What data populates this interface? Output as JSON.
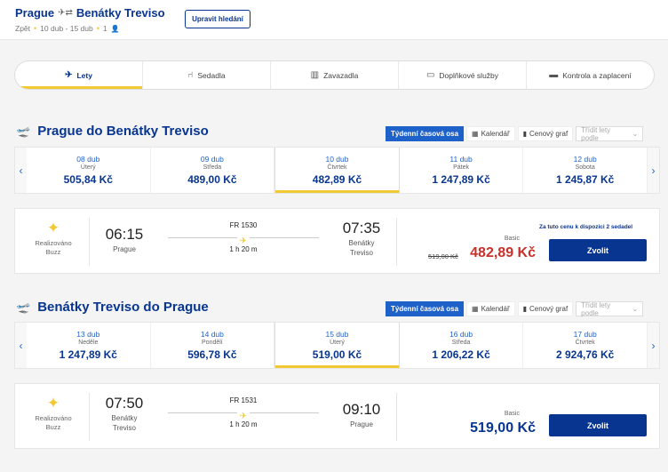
{
  "header": {
    "origin": "Prague",
    "destination": "Benátky Treviso",
    "back_label": "Zpět",
    "dates": "10 dub - 15 dub",
    "passengers": "1",
    "modify_label": "Upravit hledání"
  },
  "steps": [
    {
      "label": "Lety",
      "icon": "plane-icon"
    },
    {
      "label": "Sedadla",
      "icon": "seat-icon"
    },
    {
      "label": "Zavazadla",
      "icon": "luggage-icon"
    },
    {
      "label": "Doplňkové služby",
      "icon": "monitor-icon"
    },
    {
      "label": "Kontrola a zaplacení",
      "icon": "card-icon"
    }
  ],
  "view_tabs": {
    "week": "Týdenní časová osa",
    "calendar": "Kalendář",
    "price_chart": "Cenový graf",
    "sort": "Třídit lety podle"
  },
  "outbound": {
    "title": "Prague do Benátky Treviso",
    "dates": [
      {
        "date": "08 dub",
        "weekday": "Úterý",
        "price": "505,84 Kč"
      },
      {
        "date": "09 dub",
        "weekday": "Středa",
        "price": "489,00 Kč"
      },
      {
        "date": "10 dub",
        "weekday": "Čtvrtek",
        "price": "482,89 Kč"
      },
      {
        "date": "11 dub",
        "weekday": "Pátek",
        "price": "1 247,89 Kč"
      },
      {
        "date": "12 dub",
        "weekday": "Sobota",
        "price": "1 245,87 Kč"
      }
    ],
    "flight": {
      "operator_line1": "Realizováno",
      "operator_line2": "Buzz",
      "dep_time": "06:15",
      "dep_city": "Prague",
      "flight_no": "FR 1530",
      "duration": "1 h 20 m",
      "arr_time": "07:35",
      "arr_city_line1": "Benátky",
      "arr_city_line2": "Treviso",
      "availability": "Za tuto cenu k dispozici 2 sedadel",
      "fare": "Basic",
      "old_price": "519,00 Kč",
      "price": "482,89 Kč",
      "price_color": "#c8312a",
      "choose_label": "Zvolit"
    }
  },
  "inbound": {
    "title": "Benátky Treviso do Prague",
    "dates": [
      {
        "date": "13 dub",
        "weekday": "Neděle",
        "price": "1 247,89 Kč"
      },
      {
        "date": "14 dub",
        "weekday": "Pondělí",
        "price": "596,78 Kč"
      },
      {
        "date": "15 dub",
        "weekday": "Úterý",
        "price": "519,00 Kč"
      },
      {
        "date": "16 dub",
        "weekday": "Středa",
        "price": "1 206,22 Kč"
      },
      {
        "date": "17 dub",
        "weekday": "Čtvrtek",
        "price": "2 924,76 Kč"
      }
    ],
    "flight": {
      "operator_line1": "Realizováno",
      "operator_line2": "Buzz",
      "dep_time": "07:50",
      "dep_city_line1": "Benátky",
      "dep_city_line2": "Treviso",
      "flight_no": "FR 1531",
      "duration": "1 h 20 m",
      "arr_time": "09:10",
      "arr_city": "Prague",
      "fare": "Basic",
      "price": "519,00 Kč",
      "price_color": "#073590",
      "choose_label": "Zvolit"
    }
  }
}
